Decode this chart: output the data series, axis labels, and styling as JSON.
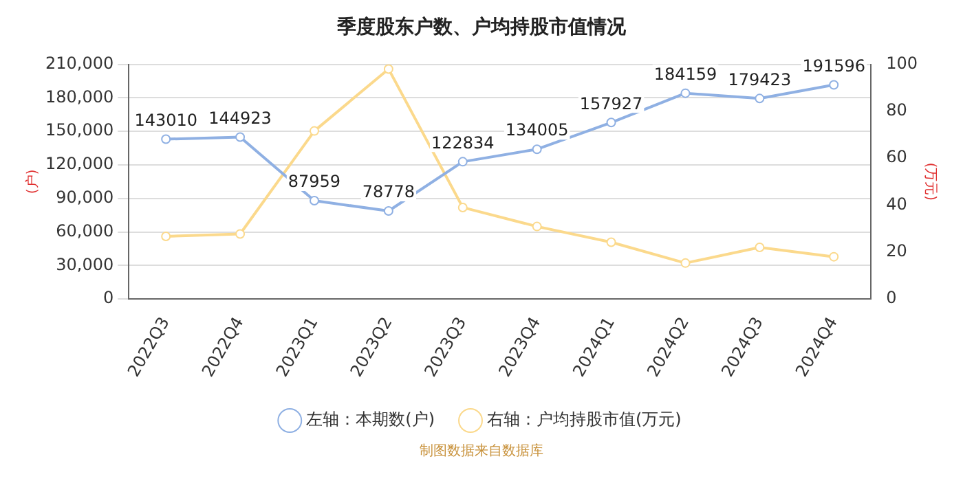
{
  "chart_data": {
    "type": "line",
    "title": "季度股东户数、户均持股市值情况",
    "ylabel": "(户)",
    "y2label": "(万元)",
    "categories": [
      "2022Q3",
      "2022Q4",
      "2023Q1",
      "2023Q2",
      "2023Q3",
      "2023Q4",
      "2024Q1",
      "2024Q2",
      "2024Q3",
      "2024Q4"
    ],
    "series": [
      {
        "name": "左轴：本期数(户)",
        "color": "#8fb0e3",
        "values": [
          143010,
          144923,
          87959,
          78778,
          122834,
          134005,
          157927,
          184159,
          179423,
          191596
        ],
        "value_labels": [
          "143010",
          "144923",
          "87959",
          "78778",
          "122834",
          "134005",
          "157927",
          "184159",
          "179423",
          "191596"
        ]
      },
      {
        "name": "右轴：户均持股市值(万元)",
        "color": "#fbd98c",
        "axis": "y2",
        "values": [
          26.7,
          27.7,
          71.6,
          98,
          39,
          30.9,
          24.2,
          15.3,
          22,
          18
        ]
      }
    ],
    "ylim": [
      0,
      210000
    ],
    "yticks": [
      {
        "value": 0,
        "label": "0"
      },
      {
        "value": 30000,
        "label": "30,000"
      },
      {
        "value": 60000,
        "label": "60,000"
      },
      {
        "value": 90000,
        "label": "90,000"
      },
      {
        "value": 120000,
        "label": "120,000"
      },
      {
        "value": 150000,
        "label": "150,000"
      },
      {
        "value": 180000,
        "label": "180,000"
      },
      {
        "value": 210000,
        "label": "210,000"
      }
    ],
    "y2lim": [
      0,
      100
    ],
    "y2ticks": [
      0,
      20,
      40,
      60,
      80,
      100
    ],
    "grid": "y",
    "legend": "bottom",
    "marker": "circle",
    "line_style": "solid",
    "annotations": [
      "制图数据来自数据库"
    ]
  }
}
